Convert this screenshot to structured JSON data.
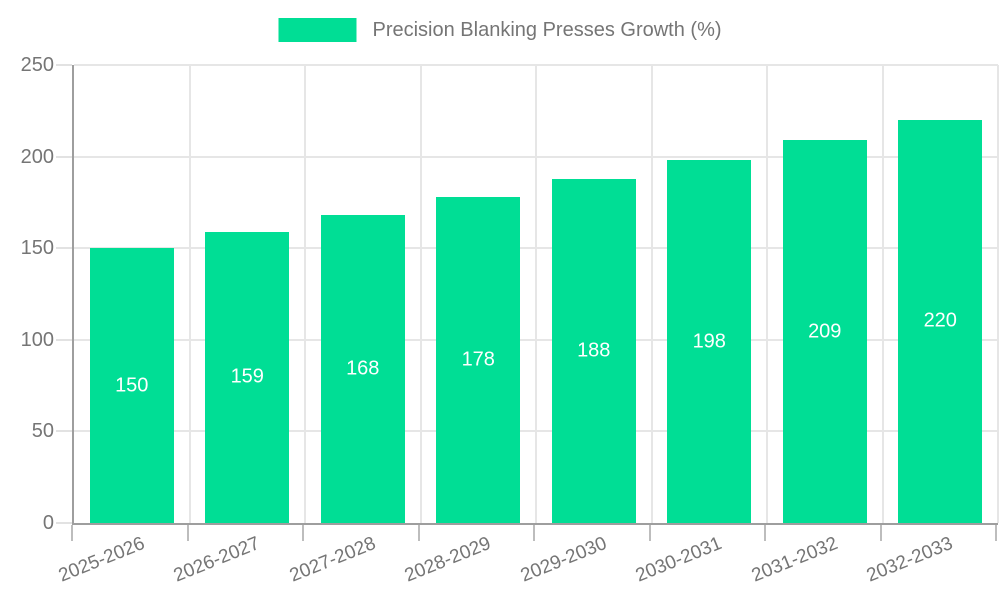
{
  "legend": {
    "label": "Precision Blanking Presses Growth (%)",
    "swatch_color": "#00de95"
  },
  "chart_data": {
    "type": "bar",
    "title": "Precision Blanking Presses Growth (%)",
    "categories": [
      "2025-2026",
      "2026-2027",
      "2027-2028",
      "2028-2029",
      "2029-2030",
      "2030-2031",
      "2031-2032",
      "2032-2033"
    ],
    "values": [
      150,
      159,
      168,
      178,
      188,
      198,
      209,
      220
    ],
    "value_labels": [
      "150",
      "159",
      "168",
      "178",
      "188",
      "198",
      "209",
      "220"
    ],
    "xlabel": "",
    "ylabel": "",
    "ylim": [
      0,
      250
    ],
    "yticks": [
      0,
      50,
      100,
      150,
      200,
      250
    ],
    "grid": true,
    "legend_position": "top",
    "bar_color": "#00de95",
    "value_label_color": "#ffffff",
    "axis_color": "#9e9e9e",
    "grid_color": "#e6e6e6",
    "text_color": "#757575",
    "background_color": "#ffffff"
  }
}
